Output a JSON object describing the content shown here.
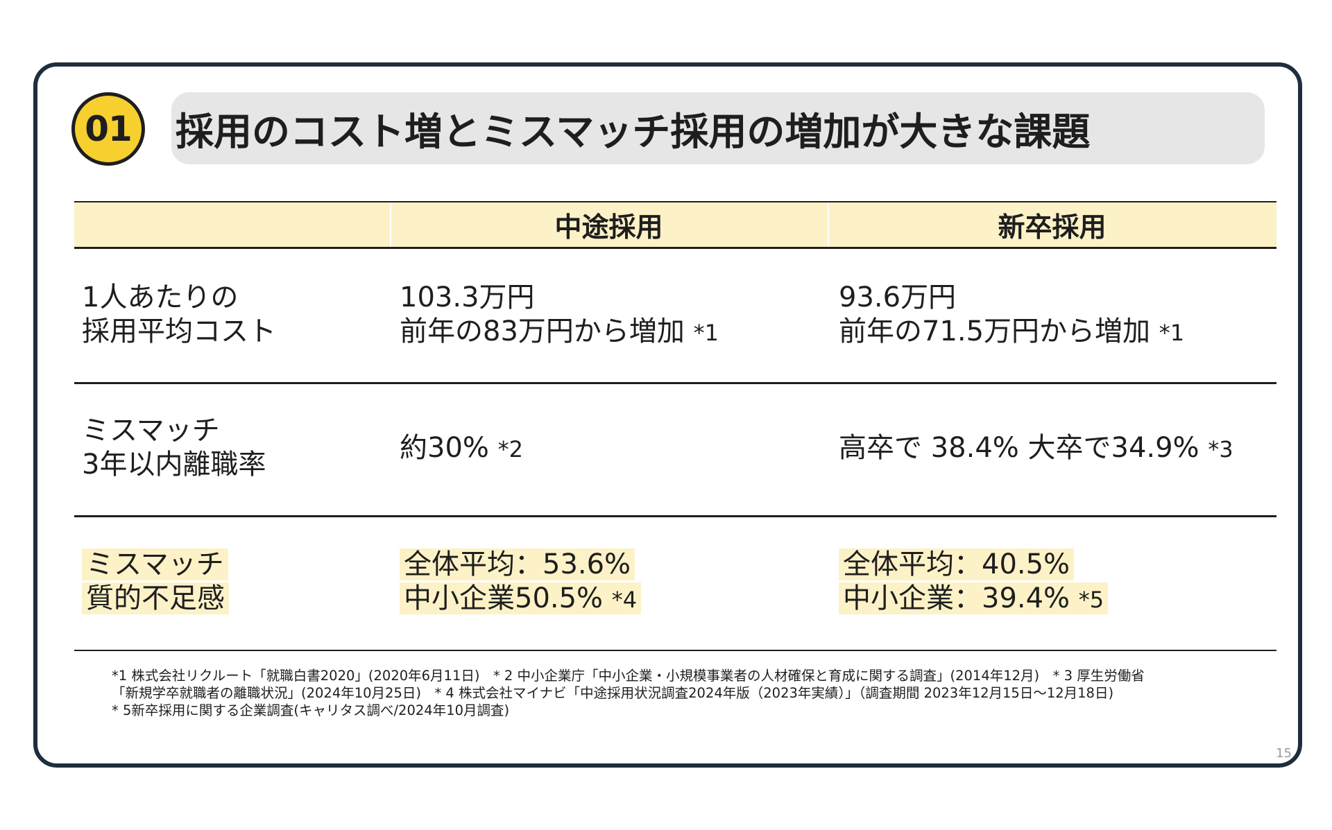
{
  "badge": "01",
  "title": "採用のコスト増とミスマッチ採用の増加が大きな課題",
  "table": {
    "headers": [
      "中途採用",
      "新卒採用"
    ],
    "rows": [
      {
        "label": [
          "1人あたりの",
          "採用平均コスト"
        ],
        "mid_career": {
          "line1": "103.3万円",
          "line2": "前年の83万円から増加",
          "note2": "*1"
        },
        "new_grad": {
          "line1": "93.6万円",
          "line2": "前年の71.5万円から増加",
          "note2": "*1"
        }
      },
      {
        "label": [
          "ミスマッチ",
          "3年以内離職率"
        ],
        "mid_career": {
          "line1": "約30%",
          "note1": "*2"
        },
        "new_grad": {
          "line1": "高卒で 38.4% 大卒で34.9%",
          "note1": "*3"
        }
      },
      {
        "label": [
          "ミスマッチ",
          "質的不足感"
        ],
        "mid_career": {
          "line1": "全体平均：53.6%",
          "line2": "中小企業50.5%",
          "note2": "*4"
        },
        "new_grad": {
          "line1": "全体平均：40.5%",
          "line2": "中小企業：39.4%",
          "note2": "*5"
        }
      }
    ]
  },
  "footnotes": [
    "*1 株式会社リクルート「就職白書2020」(2020年6月11日)　* 2 中小企業庁「中小企業・小規模事業者の人材確保と育成に関する調査」(2014年12月)　* 3 厚生労働省",
    "「新規学卒就職者の離職状況」(2024年10月25日)　* 4 株式会社マイナビ「中途採用状況調査2024年版（2023年実績）」（調査期間 2023年12月15日〜12月18日)",
    "* 5新卒採用に関する企業調査(キャリタス調べ/2024年10月調査)"
  ],
  "page_number": "15",
  "colors": {
    "frame": "#1f2d3d",
    "badge": "#f7cf2f",
    "title_pill": "#e6e6e6",
    "highlight": "#fdf2c7"
  }
}
